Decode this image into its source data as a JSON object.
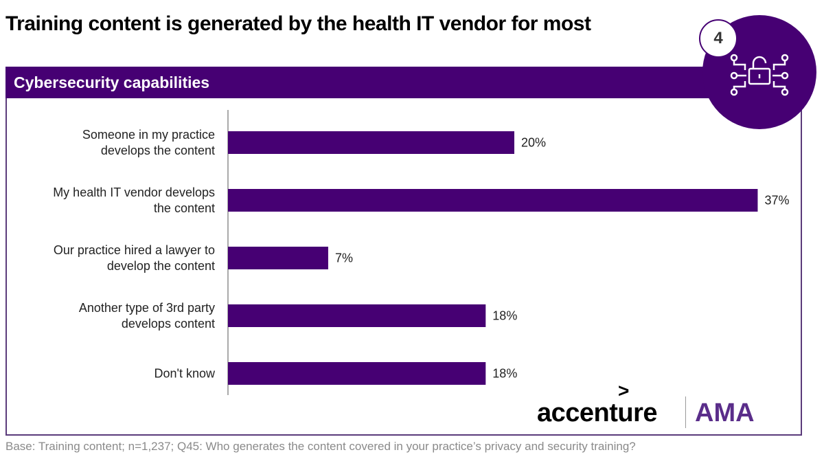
{
  "title": "Training content is generated by the health IT vendor for most",
  "section_header": "Cybersecurity capabilities",
  "badge_number": "4",
  "icon": "cybersecurity-lock-circuit-icon",
  "logos": {
    "accenture": "accenture",
    "accenture_mark": ">",
    "ama": "AMA"
  },
  "footer": "Base: Training content; n=1,237; Q45: Who generates the content covered in your practice’s privacy and security training?",
  "colors": {
    "bar": "#460073",
    "header": "#460073"
  },
  "chart_data": {
    "type": "bar",
    "orientation": "horizontal",
    "categories": [
      [
        "Someone in my practice",
        "develops the content"
      ],
      [
        "My health IT vendor develops",
        "the content"
      ],
      [
        "Our practice hired a lawyer to",
        "develop the content"
      ],
      [
        "Another type of 3rd party",
        "develops content"
      ],
      [
        "Don't know"
      ]
    ],
    "values": [
      20,
      37,
      7,
      18,
      18
    ],
    "value_labels": [
      "20%",
      "37%",
      "7%",
      "18%",
      "18%"
    ],
    "unit": "%",
    "xlim": [
      0,
      37
    ],
    "grid": false
  }
}
